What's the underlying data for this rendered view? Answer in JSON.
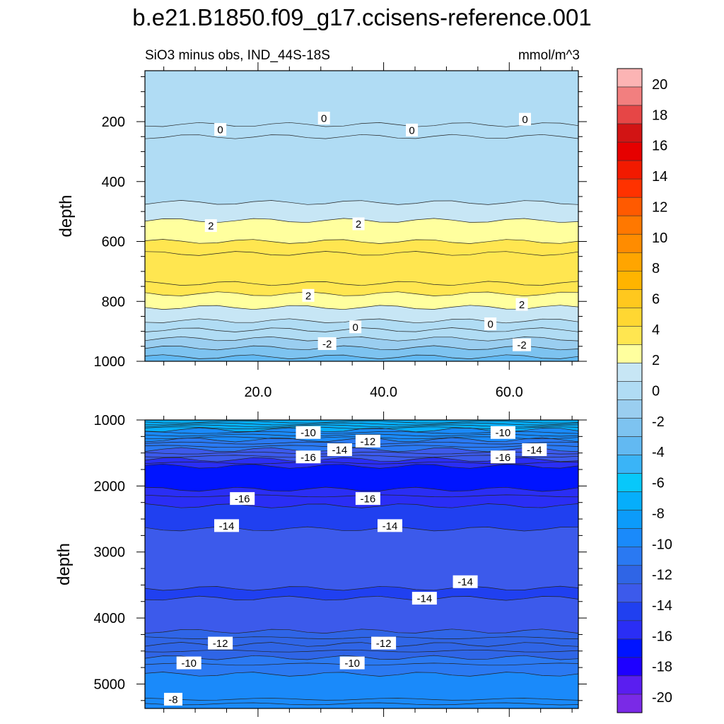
{
  "title": "b.e21.B1850.f09_g17.ccisens-reference.001",
  "subtitle_left": "SiO3 minus obs, IND_44S-18S",
  "subtitle_right": "mmol/m^3",
  "colorbar": {
    "levels": [
      20,
      18,
      16,
      14,
      12,
      10,
      8,
      6,
      4,
      2,
      0,
      -2,
      -4,
      -6,
      -8,
      -10,
      -12,
      -14,
      -16,
      -18,
      -20
    ],
    "colors": [
      "#fcb4b4",
      "#f27f7f",
      "#e64646",
      "#d21414",
      "#e60000",
      "#f21a00",
      "#ff3200",
      "#ff5a00",
      "#ff7800",
      "#ff8c00",
      "#ffa500",
      "#ffb400",
      "#ffc81e",
      "#ffd732",
      "#ffe650",
      "#ffff9e",
      "#c7e6f5",
      "#b0dcf4",
      "#9acef0",
      "#7dc3f0",
      "#62b9f2",
      "#3ab4f7",
      "#08c8fa",
      "#06aefb",
      "#0c9bfa",
      "#1a8afa",
      "#2a79f2",
      "#2f65e6",
      "#3c5aeb",
      "#2040f0",
      "#2a2ef5",
      "#0014ff",
      "#1e00ff",
      "#5a1ef0",
      "#7a2ae6"
    ]
  },
  "chart_data": [
    {
      "type": "contour",
      "panel": "upper",
      "xlabel": "",
      "ylabel": "depth",
      "xlim": [
        2,
        71
      ],
      "ylim": [
        1000,
        30
      ],
      "xticks": [
        20.0,
        40.0,
        60.0
      ],
      "xtick_labels": [
        "20.0",
        "40.0",
        "60.0"
      ],
      "yticks": [
        200,
        400,
        600,
        800,
        1000
      ],
      "ytick_labels": [
        "200",
        "400",
        "600",
        "800",
        "1000"
      ],
      "bands": [
        {
          "top": 30,
          "bottom": 210,
          "value": 0.5
        },
        {
          "top": 210,
          "bottom": 250,
          "value": -0.5
        },
        {
          "top": 250,
          "bottom": 470,
          "value": 0.5
        },
        {
          "top": 470,
          "bottom": 530,
          "value": 1.5
        },
        {
          "top": 530,
          "bottom": 600,
          "value": 2.5
        },
        {
          "top": 600,
          "bottom": 640,
          "value": 3.2
        },
        {
          "top": 640,
          "bottom": 740,
          "value": 3.8
        },
        {
          "top": 740,
          "bottom": 775,
          "value": 3.2
        },
        {
          "top": 775,
          "bottom": 820,
          "value": 2.5
        },
        {
          "top": 820,
          "bottom": 865,
          "value": 1.5
        },
        {
          "top": 865,
          "bottom": 895,
          "value": 0.5
        },
        {
          "top": 895,
          "bottom": 925,
          "value": -0.5
        },
        {
          "top": 925,
          "bottom": 955,
          "value": -1.5
        },
        {
          "top": 955,
          "bottom": 985,
          "value": -2.5
        },
        {
          "top": 985,
          "bottom": 1000,
          "value": -3.5
        }
      ],
      "contour_lines": [
        210,
        250,
        470,
        530,
        600,
        640,
        740,
        775,
        820,
        865,
        895,
        925,
        955,
        985
      ],
      "contour_labels": [
        {
          "x": 30.5,
          "depth": 188,
          "text": "0"
        },
        {
          "x": 62.5,
          "depth": 192,
          "text": "0"
        },
        {
          "x": 14.0,
          "depth": 226,
          "text": "0"
        },
        {
          "x": 44.5,
          "depth": 228,
          "text": "0"
        },
        {
          "x": 12.5,
          "depth": 547,
          "text": "2"
        },
        {
          "x": 36.0,
          "depth": 541,
          "text": "2"
        },
        {
          "x": 28.0,
          "depth": 780,
          "text": "2"
        },
        {
          "x": 62.0,
          "depth": 810,
          "text": "2"
        },
        {
          "x": 35.5,
          "depth": 885,
          "text": "0"
        },
        {
          "x": 57.0,
          "depth": 875,
          "text": "0"
        },
        {
          "x": 31.0,
          "depth": 941,
          "text": "-2"
        },
        {
          "x": 62.0,
          "depth": 945,
          "text": "-2"
        }
      ]
    },
    {
      "type": "contour",
      "panel": "lower",
      "xlabel": "",
      "ylabel": "depth",
      "xlim": [
        2,
        71
      ],
      "ylim": [
        5370,
        1000
      ],
      "yticks": [
        1000,
        2000,
        3000,
        4000,
        5000
      ],
      "ytick_labels": [
        "1000",
        "2000",
        "3000",
        "4000",
        "5000"
      ],
      "bands": [
        {
          "top": 1000,
          "bottom": 1150,
          "value": -7.0
        },
        {
          "top": 1150,
          "bottom": 1300,
          "value": -9.0
        },
        {
          "top": 1300,
          "bottom": 1450,
          "value": -11.0
        },
        {
          "top": 1450,
          "bottom": 1600,
          "value": -13.0
        },
        {
          "top": 1600,
          "bottom": 1700,
          "value": -15.0
        },
        {
          "top": 1700,
          "bottom": 2050,
          "value": -17.0
        },
        {
          "top": 2050,
          "bottom": 2300,
          "value": -15.5
        },
        {
          "top": 2300,
          "bottom": 2650,
          "value": -14.5
        },
        {
          "top": 2650,
          "bottom": 3550,
          "value": -13.5
        },
        {
          "top": 3550,
          "bottom": 3700,
          "value": -14.5
        },
        {
          "top": 3700,
          "bottom": 4200,
          "value": -13.5
        },
        {
          "top": 4200,
          "bottom": 4400,
          "value": -12.5
        },
        {
          "top": 4400,
          "bottom": 4600,
          "value": -11.5
        },
        {
          "top": 4600,
          "bottom": 4850,
          "value": -10.5
        },
        {
          "top": 4850,
          "bottom": 5370,
          "value": -9.0
        }
      ],
      "contour_lines": [
        1030,
        1060,
        1090,
        1120,
        1150,
        1190,
        1230,
        1270,
        1300,
        1350,
        1400,
        1450,
        1500,
        1550,
        1600,
        1650,
        1700,
        2050,
        2150,
        2300,
        2650,
        3550,
        3700,
        4200,
        4300,
        4400,
        4500,
        4600,
        4700,
        4850,
        5230,
        5300
      ],
      "contour_labels": [
        {
          "x": 28.0,
          "depth": 1190,
          "text": "-10"
        },
        {
          "x": 59.0,
          "depth": 1190,
          "text": "-10"
        },
        {
          "x": 37.5,
          "depth": 1320,
          "text": "-12"
        },
        {
          "x": 33.0,
          "depth": 1450,
          "text": "-14"
        },
        {
          "x": 64.0,
          "depth": 1450,
          "text": "-14"
        },
        {
          "x": 28.0,
          "depth": 1560,
          "text": "-16"
        },
        {
          "x": 59.0,
          "depth": 1560,
          "text": "-16"
        },
        {
          "x": 17.5,
          "depth": 2190,
          "text": "-16"
        },
        {
          "x": 37.5,
          "depth": 2190,
          "text": "-16"
        },
        {
          "x": 15.0,
          "depth": 2600,
          "text": "-14"
        },
        {
          "x": 41.0,
          "depth": 2600,
          "text": "-14"
        },
        {
          "x": 53.0,
          "depth": 3450,
          "text": "-14"
        },
        {
          "x": 46.5,
          "depth": 3700,
          "text": "-14"
        },
        {
          "x": 14.0,
          "depth": 4380,
          "text": "-12"
        },
        {
          "x": 40.0,
          "depth": 4380,
          "text": "-12"
        },
        {
          "x": 9.0,
          "depth": 4680,
          "text": "-10"
        },
        {
          "x": 35.0,
          "depth": 4680,
          "text": "-10"
        },
        {
          "x": 6.5,
          "depth": 5230,
          "text": "-8"
        }
      ]
    }
  ]
}
